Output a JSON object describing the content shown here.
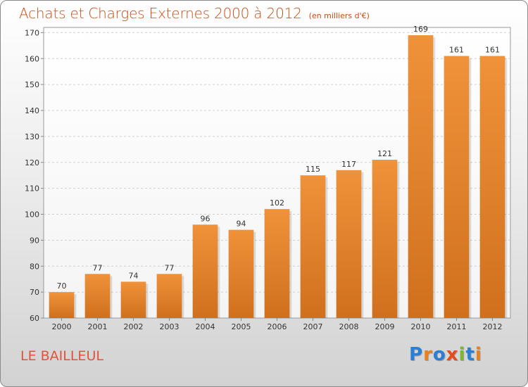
{
  "header": {
    "title": "Achats et Charges Externes 2000 à 2012",
    "subtitle": "(en milliers d'€)"
  },
  "footer": {
    "commune": "LE BAILLEUL",
    "logo_letters": [
      "P",
      "r",
      "o",
      "x",
      "i",
      "t",
      "i"
    ],
    "logo_colors": [
      "#2a7fd4",
      "#e8801c",
      "#2a7fd4",
      "#e84a1c",
      "#7cb82f",
      "#2a7fd4",
      "#e8801c"
    ]
  },
  "chart_data": {
    "type": "bar",
    "title": "Achats et Charges Externes 2000 à 2012",
    "subtitle": "(en milliers d'€)",
    "categories": [
      "2000",
      "2001",
      "2002",
      "2003",
      "2004",
      "2005",
      "2006",
      "2007",
      "2008",
      "2009",
      "2010",
      "2011",
      "2012"
    ],
    "values": [
      70,
      77,
      74,
      77,
      96,
      94,
      102,
      115,
      117,
      121,
      169,
      161,
      161
    ],
    "data_labels": [
      "70",
      "77",
      "74",
      "77",
      "96",
      "94",
      "102",
      "115",
      "117",
      "121",
      "169",
      "161",
      "161"
    ],
    "ylim": [
      60,
      172
    ],
    "yticks": [
      60,
      70,
      80,
      90,
      100,
      110,
      120,
      130,
      140,
      150,
      160,
      170
    ],
    "ytick_labels": [
      "60",
      "70",
      "80",
      "90",
      "100",
      "110",
      "120",
      "130",
      "140",
      "150",
      "160",
      "170"
    ],
    "grid": true,
    "bar_color": "#f0923a",
    "bar_color_dark": "#d0701d"
  }
}
